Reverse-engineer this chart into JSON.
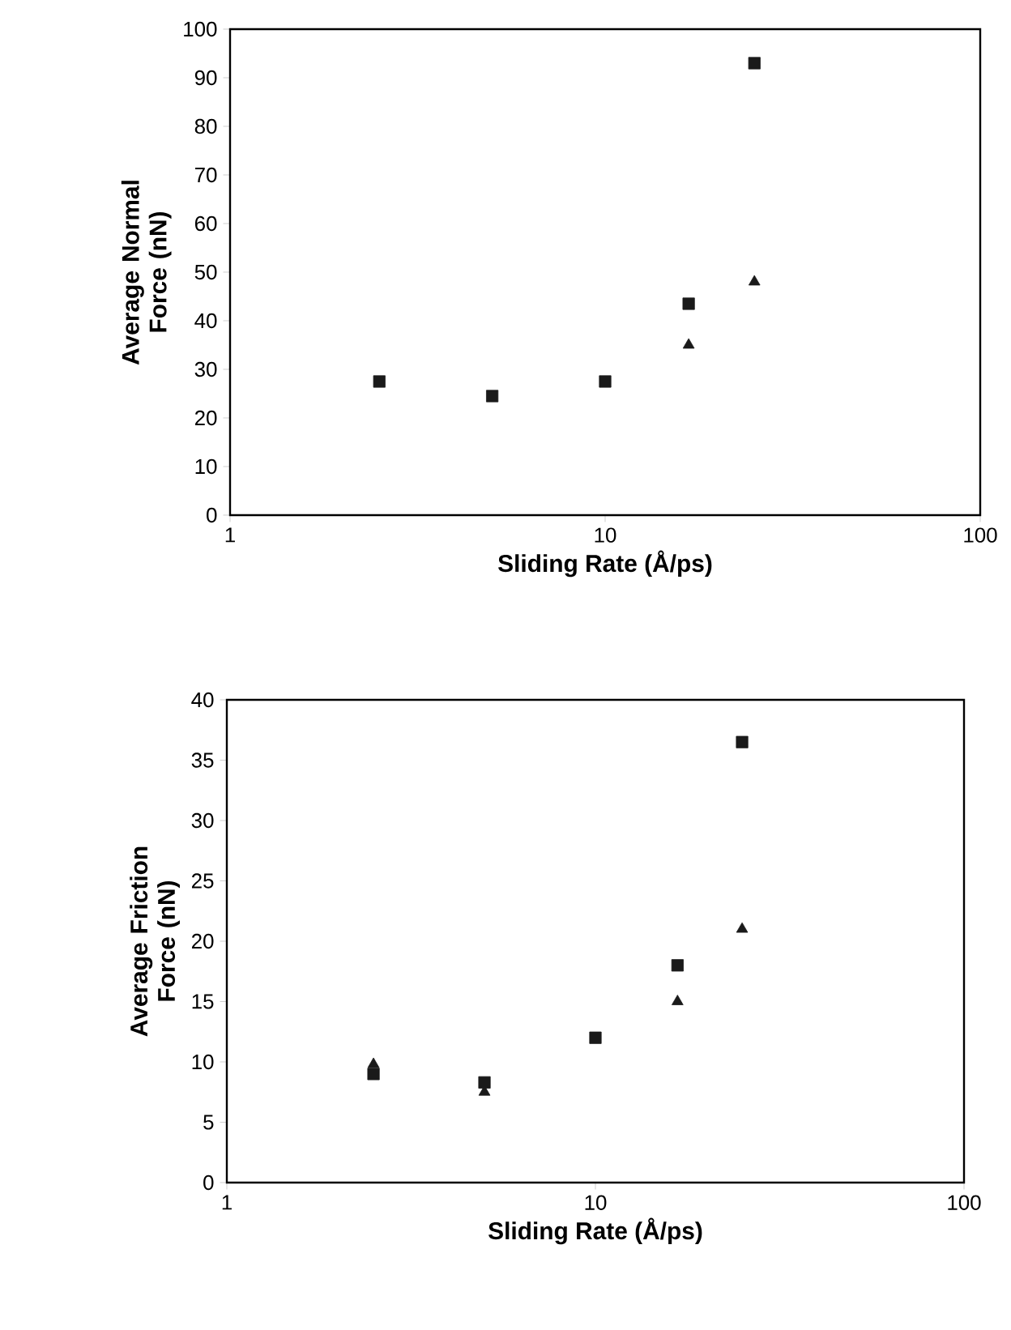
{
  "chart_data": [
    {
      "type": "scatter",
      "xlabel": "Sliding Rate (Å/ps)",
      "ylabel": "Average Normal Force (nN)",
      "log": "x",
      "xlim": [
        1,
        100
      ],
      "xticks": [
        1,
        10,
        100
      ],
      "ylim": [
        0,
        100
      ],
      "yticks": [
        0,
        10,
        20,
        30,
        40,
        50,
        60,
        70,
        80,
        90,
        100
      ],
      "series": [
        {
          "color": "#1a1a1a",
          "marker": "square",
          "x": [
            2.5,
            5,
            10,
            16.7,
            25
          ],
          "values": [
            27.5,
            24.5,
            27.5,
            43.5,
            93
          ]
        },
        {
          "color": "#1a1a1a",
          "marker": "triangle",
          "x": [
            16.7,
            25
          ],
          "values": [
            35,
            48
          ]
        }
      ]
    },
    {
      "type": "scatter",
      "xlabel": "Sliding Rate (Å/ps)",
      "ylabel": "Average Friction Force (nN)",
      "log": "x",
      "xlim": [
        1,
        100
      ],
      "xticks": [
        1,
        10,
        100
      ],
      "ylim": [
        0,
        40
      ],
      "yticks": [
        0,
        5,
        10,
        15,
        20,
        25,
        30,
        35,
        40
      ],
      "series": [
        {
          "color": "#1a1a1a",
          "marker": "triangle",
          "x": [
            2.5,
            5,
            16.7,
            25
          ],
          "values": [
            9.8,
            7.5,
            15,
            21
          ]
        },
        {
          "color": "#1a1a1a",
          "marker": "square",
          "x": [
            2.5,
            5,
            10,
            16.7,
            25
          ],
          "values": [
            9,
            8.3,
            12,
            18,
            36.5
          ]
        }
      ]
    }
  ]
}
